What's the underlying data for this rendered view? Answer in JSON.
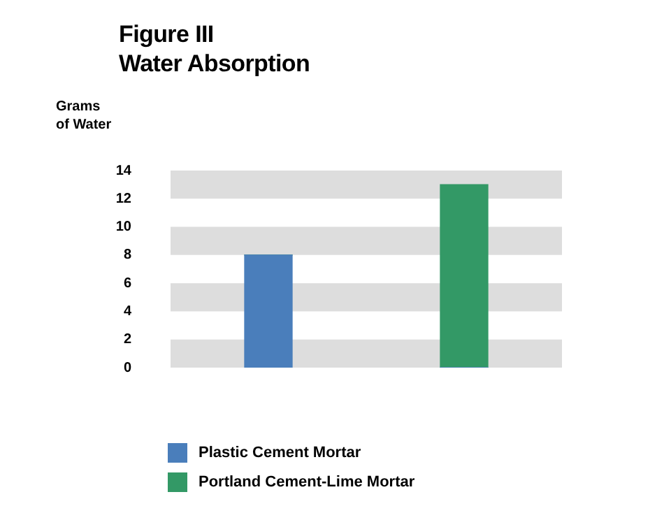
{
  "chart_data": {
    "type": "bar",
    "title": "Figure III\nWater Absorption",
    "ylabel": "Grams\nof Water",
    "categories": [
      null,
      null
    ],
    "stacked": true,
    "series": [
      {
        "name": "Plastic Cement Mortar",
        "color": "#4a7ebb",
        "values": [
          8,
          0
        ]
      },
      {
        "name": "Portland Cement-Lime Mortar",
        "color": "#339966",
        "values": [
          0,
          13
        ]
      }
    ],
    "ylim": [
      0,
      14
    ],
    "yticks": [
      0,
      2,
      4,
      6,
      8,
      10,
      12,
      14
    ],
    "tick_labels": "y",
    "bands": [
      {
        "axis": "y",
        "from": 0,
        "to": 2,
        "color": "#dddddd"
      },
      {
        "axis": "y",
        "from": 4,
        "to": 6,
        "color": "#dddddd"
      },
      {
        "axis": "y",
        "from": 8,
        "to": 10,
        "color": "#dddddd"
      },
      {
        "axis": "y",
        "from": 12,
        "to": 14,
        "color": "#dddddd"
      }
    ],
    "legend": "bottom"
  }
}
